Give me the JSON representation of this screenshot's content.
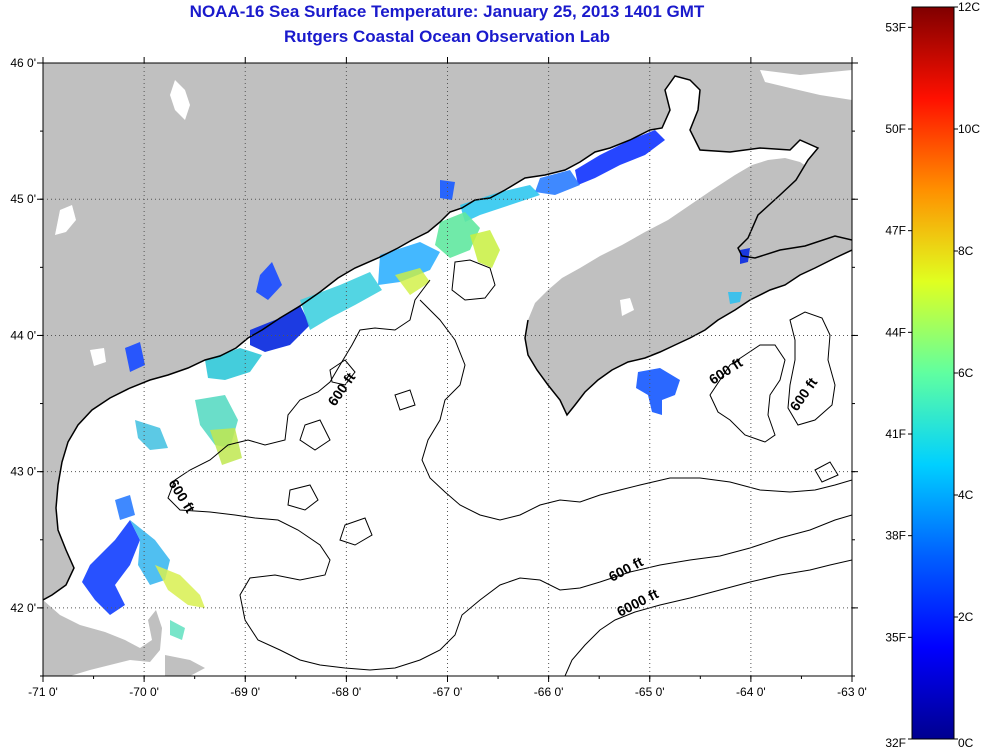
{
  "title": {
    "line1": "NOAA-16 Sea Surface Temperature:  January 25, 2013 1401 GMT",
    "line2": "Rutgers Coastal Ocean Observation Lab"
  },
  "map": {
    "lon_ticks": [
      "-71 0'",
      "-70 0'",
      "-69 0'",
      "-68 0'",
      "-67 0'",
      "-66 0'",
      "-65 0'",
      "-64 0'",
      "-63 0'"
    ],
    "lat_ticks": [
      "42 0'",
      "43 0'",
      "44 0'",
      "45 0'",
      "46 0'"
    ],
    "lon_range": [
      -71,
      -63
    ],
    "lat_range": [
      41.5,
      46
    ],
    "colors": {
      "land": "#c0c0c0",
      "water": "#ffffff",
      "grid": "#555555"
    },
    "contour_labels": [
      {
        "text": "600 ft"
      },
      {
        "text": "600 ft"
      },
      {
        "text": "600 ft"
      },
      {
        "text": "600 ft"
      },
      {
        "text": "600 ft"
      },
      {
        "text": "6000 ft"
      }
    ]
  },
  "colorbar": {
    "fahrenheit_labels": [
      "53F",
      "50F",
      "47F",
      "44F",
      "41F",
      "38F",
      "35F",
      "32F"
    ],
    "celsius_labels": [
      "12C",
      "10C",
      "8C",
      "6C",
      "4C",
      "2C",
      "0C"
    ],
    "range_c": [
      0,
      12
    ],
    "palette": [
      "#00008f",
      "#0000ff",
      "#0080ff",
      "#00ffff",
      "#80ff80",
      "#ffff00",
      "#ff8000",
      "#ff0000",
      "#800000"
    ]
  }
}
